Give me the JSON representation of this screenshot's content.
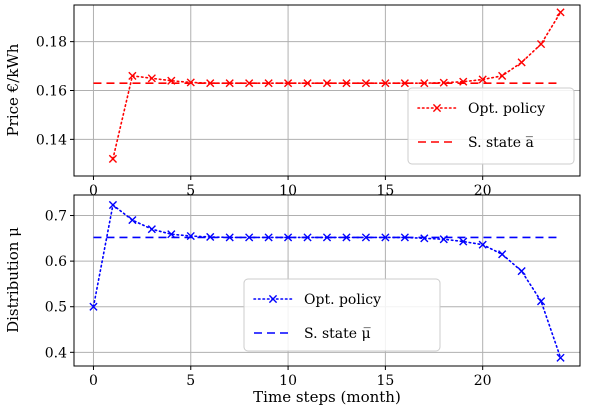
{
  "chart_data": [
    {
      "type": "line",
      "ylabel": "Price €/kWh",
      "xlabel": "",
      "xlim": [
        -1,
        25
      ],
      "ylim": [
        0.125,
        0.195
      ],
      "xticks": [
        0,
        5,
        10,
        15,
        20
      ],
      "yticks": [
        0.14,
        0.16,
        0.18
      ],
      "ytick_labels": [
        "0.14",
        "0.16",
        "0.18"
      ],
      "grid": true,
      "legend_position": "lower-right",
      "color": "#ff0000",
      "series": [
        {
          "name": "Opt. policy",
          "style": "dotted-x",
          "x": [
            1,
            2,
            3,
            4,
            5,
            6,
            7,
            8,
            9,
            10,
            11,
            12,
            13,
            14,
            15,
            16,
            17,
            18,
            19,
            20,
            21,
            22,
            23,
            24
          ],
          "y": [
            0.132,
            0.166,
            0.165,
            0.164,
            0.1633,
            0.163,
            0.163,
            0.163,
            0.163,
            0.163,
            0.163,
            0.163,
            0.163,
            0.163,
            0.163,
            0.163,
            0.163,
            0.1632,
            0.1636,
            0.1645,
            0.166,
            0.1715,
            0.179,
            0.192
          ]
        },
        {
          "name": "S. state a̅",
          "style": "dashed",
          "x": [
            0,
            24
          ],
          "y": [
            0.163,
            0.163
          ]
        }
      ]
    },
    {
      "type": "line",
      "ylabel": "Distribution μ",
      "xlabel": "Time steps (month)",
      "xlim": [
        -1,
        25
      ],
      "ylim": [
        0.37,
        0.745
      ],
      "xticks": [
        0,
        5,
        10,
        15,
        20
      ],
      "yticks": [
        0.4,
        0.5,
        0.6,
        0.7
      ],
      "ytick_labels": [
        "0.4",
        "0.5",
        "0.6",
        "0.7"
      ],
      "grid": true,
      "legend_position": "lower-center",
      "color": "#0000ff",
      "series": [
        {
          "name": "Opt. policy",
          "style": "dotted-x",
          "x": [
            0,
            1,
            2,
            3,
            4,
            5,
            6,
            7,
            8,
            9,
            10,
            11,
            12,
            13,
            14,
            15,
            16,
            17,
            18,
            19,
            20,
            21,
            22,
            23,
            24
          ],
          "y": [
            0.5,
            0.723,
            0.69,
            0.67,
            0.659,
            0.655,
            0.653,
            0.652,
            0.652,
            0.652,
            0.652,
            0.652,
            0.652,
            0.652,
            0.652,
            0.652,
            0.652,
            0.65,
            0.648,
            0.643,
            0.636,
            0.615,
            0.578,
            0.512,
            0.388
          ]
        },
        {
          "name": "S. state μ̅",
          "style": "dashed",
          "x": [
            0,
            24
          ],
          "y": [
            0.652,
            0.652
          ]
        }
      ]
    }
  ]
}
